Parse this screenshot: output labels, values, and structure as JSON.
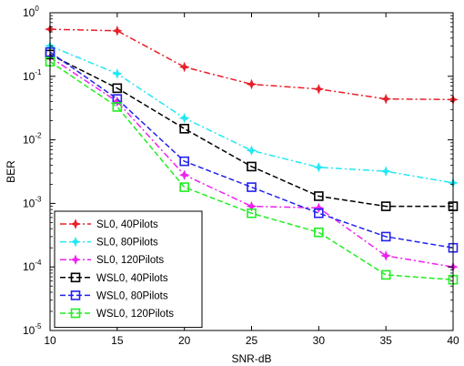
{
  "chart_data": {
    "type": "line",
    "xlabel": "SNR-dB",
    "ylabel": "BER",
    "x": [
      10,
      15,
      20,
      25,
      30,
      35,
      40
    ],
    "xlim": [
      10,
      40
    ],
    "ylim": [
      1e-05,
      1
    ],
    "yscale": "log",
    "x_ticks": [
      "10",
      "15",
      "20",
      "25",
      "30",
      "35",
      "40"
    ],
    "y_ticks": [
      {
        "base": "10",
        "exp": "-5"
      },
      {
        "base": "10",
        "exp": "-4"
      },
      {
        "base": "10",
        "exp": "-3"
      },
      {
        "base": "10",
        "exp": "-2"
      },
      {
        "base": "10",
        "exp": "-1"
      },
      {
        "base": "10",
        "exp": "0"
      }
    ],
    "grid": false,
    "legend_position": "bottom-left",
    "series": [
      {
        "name": "SL0, 40Pilots",
        "color": "#e8202a",
        "marker": "star",
        "values": [
          0.55,
          0.52,
          0.14,
          0.075,
          0.063,
          0.044,
          0.043
        ]
      },
      {
        "name": "SL0, 80Pilots",
        "color": "#22e8f2",
        "marker": "star",
        "values": [
          0.3,
          0.11,
          0.022,
          0.0068,
          0.0037,
          0.0032,
          0.0021
        ]
      },
      {
        "name": "SL0, 120Pilots",
        "color": "#ee22ee",
        "marker": "star",
        "values": [
          0.2,
          0.04,
          0.0028,
          0.0009,
          0.00085,
          0.00015,
          0.0001
        ]
      },
      {
        "name": "WSL0, 40Pilots",
        "color": "#000000",
        "marker": "square",
        "values": [
          0.22,
          0.065,
          0.015,
          0.0038,
          0.0013,
          0.0009,
          0.0009
        ]
      },
      {
        "name": "WSL0, 80Pilots",
        "color": "#2222ee",
        "marker": "square",
        "values": [
          0.24,
          0.044,
          0.0046,
          0.0018,
          0.0007,
          0.0003,
          0.0002
        ]
      },
      {
        "name": "WSL0, 120Pilots",
        "color": "#22ee22",
        "marker": "square",
        "values": [
          0.17,
          0.033,
          0.0018,
          0.0007,
          0.00035,
          7.5e-05,
          6.3e-05
        ]
      }
    ]
  }
}
